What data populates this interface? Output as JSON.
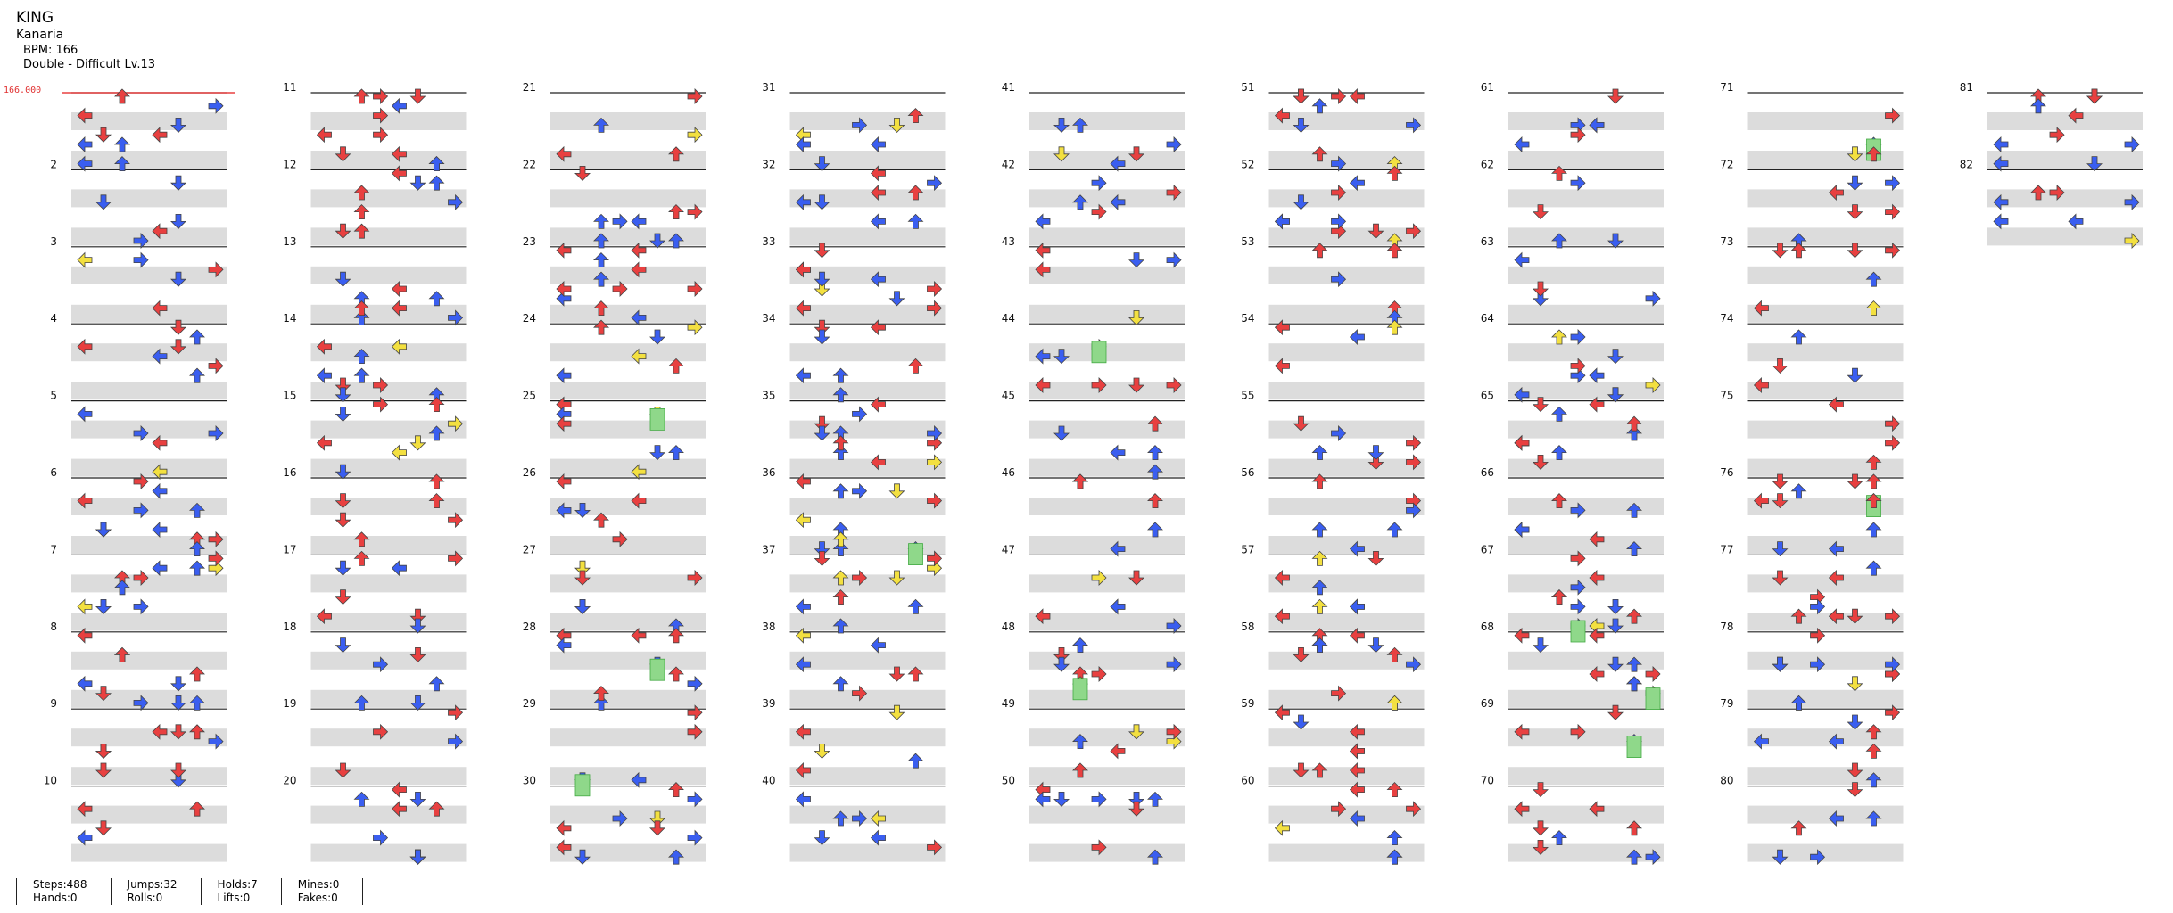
{
  "song": {
    "title": "KING",
    "artist": "Kanaria",
    "bpm_label": "BPM: 166",
    "difficulty_label": "Double - Difficult  Lv.13"
  },
  "bpm_change_label": "166.000",
  "colors": {
    "red": "#e84040",
    "blue": "#3a5ef0",
    "yellow": "#f3e040",
    "green": "#8fd88a",
    "band": "#dcdcdc"
  },
  "measures": {
    "first": 1,
    "last": 82,
    "columns": 10,
    "visible_numbers": [
      2,
      3,
      4,
      5,
      6,
      7,
      8,
      9,
      10,
      11,
      12,
      13,
      14,
      15,
      16,
      17,
      18,
      19,
      20,
      21,
      22,
      23,
      24,
      25,
      26,
      27,
      28,
      29,
      30,
      31,
      32,
      33,
      34,
      35,
      36,
      37,
      38,
      39,
      40,
      41,
      42,
      43,
      44,
      45,
      46,
      47,
      48,
      49,
      50,
      51,
      52,
      53,
      54,
      55,
      56,
      57,
      58,
      59,
      60,
      61,
      62,
      63,
      64,
      65,
      66,
      67,
      68,
      69,
      70,
      71,
      72,
      73,
      74,
      75,
      76,
      77,
      78,
      79,
      80,
      81,
      82
    ]
  },
  "stats": {
    "steps": "Steps:488",
    "jumps": "Jumps:32",
    "holds": "Holds:7",
    "mines": "Mines:0",
    "hands": "Hands:0",
    "rolls": "Rolls:0",
    "lifts": "Lifts:0",
    "fakes": "Fakes:0"
  }
}
